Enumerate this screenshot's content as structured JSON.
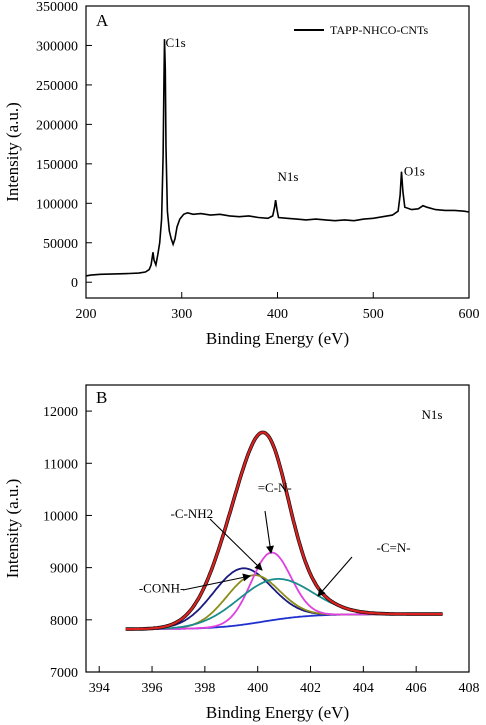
{
  "chart_data": [
    {
      "type": "line",
      "panel_label": "A",
      "xlabel": "Binding Energy (eV)",
      "ylabel": "Intensity (a.u.)",
      "xlim": [
        200,
        600
      ],
      "ylim": [
        -20000,
        350000
      ],
      "x_ticks": [
        200,
        300,
        400,
        500,
        600
      ],
      "y_ticks": [
        0,
        50000,
        100000,
        150000,
        200000,
        250000,
        300000,
        350000
      ],
      "legend": {
        "entries": [
          "TAPP-NHCO-CNTs"
        ],
        "placement": "top-right"
      },
      "annotations": [
        {
          "text": "C1s",
          "x": 283,
          "y": 298000
        },
        {
          "text": "N1s",
          "x": 400,
          "y": 128000
        },
        {
          "text": "O1s",
          "x": 532,
          "y": 135000
        }
      ],
      "series": [
        {
          "name": "TAPP-NHCO-CNTs",
          "color": "#000000",
          "points": [
            [
              200,
              8000
            ],
            [
              205,
              9000
            ],
            [
              215,
              10000
            ],
            [
              230,
              10500
            ],
            [
              245,
              11000
            ],
            [
              255,
              11500
            ],
            [
              262,
              13000
            ],
            [
              266,
              16000
            ],
            [
              268,
              22000
            ],
            [
              270,
              38000
            ],
            [
              271,
              28000
            ],
            [
              273,
              22000
            ],
            [
              275,
              35000
            ],
            [
              277,
              50000
            ],
            [
              279,
              80000
            ],
            [
              280.5,
              160000
            ],
            [
              281.5,
              260000
            ],
            [
              282,
              308000
            ],
            [
              282.8,
              270000
            ],
            [
              283.5,
              170000
            ],
            [
              285,
              90000
            ],
            [
              287,
              65000
            ],
            [
              289,
              55000
            ],
            [
              291,
              48000
            ],
            [
              293,
              55000
            ],
            [
              295,
              70000
            ],
            [
              298,
              80000
            ],
            [
              302,
              86000
            ],
            [
              306,
              88000
            ],
            [
              312,
              86000
            ],
            [
              320,
              87000
            ],
            [
              330,
              85000
            ],
            [
              340,
              86000
            ],
            [
              350,
              84000
            ],
            [
              360,
              83000
            ],
            [
              370,
              84000
            ],
            [
              380,
              82000
            ],
            [
              390,
              81000
            ],
            [
              395,
              84000
            ],
            [
              397,
              95000
            ],
            [
              398,
              104000
            ],
            [
              399.5,
              92000
            ],
            [
              401,
              82000
            ],
            [
              410,
              81000
            ],
            [
              420,
              80000
            ],
            [
              430,
              79000
            ],
            [
              440,
              80000
            ],
            [
              450,
              79000
            ],
            [
              460,
              78000
            ],
            [
              470,
              79000
            ],
            [
              480,
              78000
            ],
            [
              490,
              80000
            ],
            [
              500,
              81000
            ],
            [
              510,
              83000
            ],
            [
              520,
              85000
            ],
            [
              526,
              90000
            ],
            [
              528,
              110000
            ],
            [
              529.5,
              140000
            ],
            [
              531,
              115000
            ],
            [
              533,
              95000
            ],
            [
              540,
              92000
            ],
            [
              547,
              93000
            ],
            [
              552,
              97000
            ],
            [
              556,
              95000
            ],
            [
              565,
              92000
            ],
            [
              575,
              91000
            ],
            [
              585,
              91000
            ],
            [
              595,
              90000
            ],
            [
              600,
              89000
            ]
          ]
        }
      ]
    },
    {
      "type": "line",
      "panel_label": "B",
      "xlabel": "Binding Energy (eV)",
      "ylabel": "Intensity (a.u.)",
      "xlim": [
        393.5,
        408
      ],
      "ylim": [
        7000,
        12500
      ],
      "x_ticks": [
        394,
        396,
        398,
        400,
        402,
        404,
        406,
        408
      ],
      "y_ticks": [
        7000,
        8000,
        9000,
        10000,
        11000,
        12000
      ],
      "baseline": {
        "left": 7820,
        "right": 8110,
        "center": 400.2,
        "width": 0.9
      },
      "components": [
        {
          "name": "-CONH-",
          "color": "#1a1a80",
          "center": 399.4,
          "amplitude": 1080,
          "sigma": 1.1
        },
        {
          "name": "-C-NH2",
          "color": "#8c8c1a",
          "center": 399.8,
          "amplitude": 920,
          "sigma": 1.0
        },
        {
          "name": "=C-N-",
          "color": "#e040e0",
          "center": 400.5,
          "amplitude": 1300,
          "sigma": 0.75
        },
        {
          "name": "-C=N-",
          "color": "#1a8c8c",
          "center": 400.6,
          "amplitude": 780,
          "sigma": 1.4
        }
      ],
      "envelope_color": "#dd2020",
      "background_color": "#2030d0",
      "annotations": [
        {
          "text": "N1s",
          "x": 406.2,
          "y": 12000
        },
        {
          "text": "-C-NH2",
          "x": 396.7,
          "y": 9950
        },
        {
          "text": "=C-N-",
          "x": 400,
          "y": 10450
        },
        {
          "text": "-C=N-",
          "x": 404.5,
          "y": 9300
        },
        {
          "text": "-CONH-",
          "x": 395.5,
          "y": 8520
        }
      ]
    }
  ]
}
